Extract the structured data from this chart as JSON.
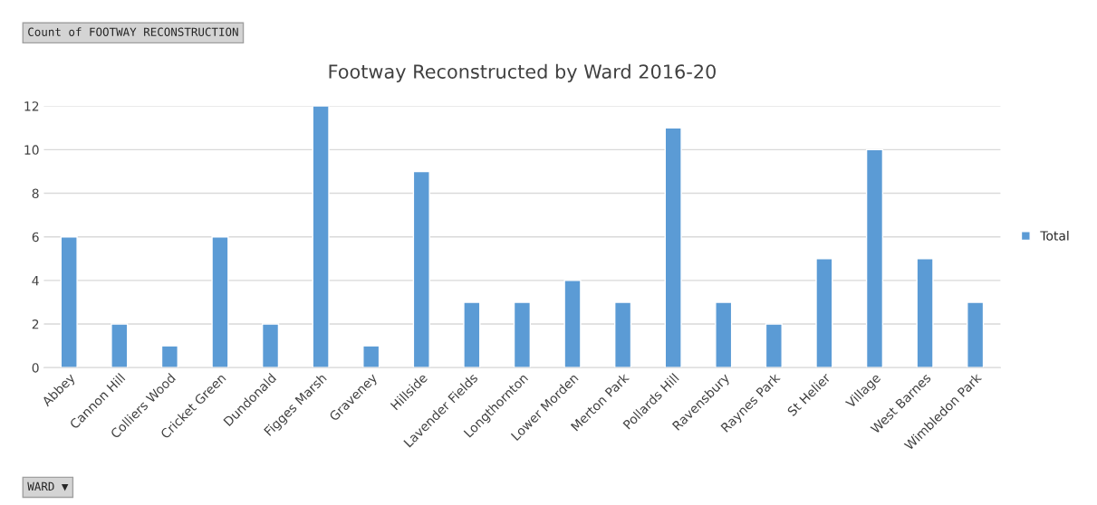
{
  "chart_data": {
    "type": "bar",
    "title": "Footway Reconstructed by Ward 2016-20",
    "categories": [
      "Abbey",
      "Cannon Hill",
      "Colliers Wood",
      "Cricket Green",
      "Dundonald",
      "Figges Marsh",
      "Graveney",
      "Hillside",
      "Lavender Fields",
      "Longthornton",
      "Lower Morden",
      "Merton Park",
      "Pollards Hill",
      "Ravensbury",
      "Raynes Park",
      "St Helier",
      "Village",
      "West Barnes",
      "Wimbledon Park"
    ],
    "series": [
      {
        "name": "Total",
        "color": "#5b9bd5",
        "values": [
          6,
          2,
          1,
          6,
          2,
          12,
          1,
          9,
          3,
          3,
          4,
          3,
          11,
          3,
          2,
          5,
          10,
          5,
          3
        ]
      }
    ],
    "ylim": [
      0,
      12
    ],
    "yticks": [
      0,
      2,
      4,
      6,
      8,
      10,
      12
    ],
    "grid": "y",
    "legend": "right",
    "annotations": [
      "Count of FOOTWAY RECONSTRUCTION",
      "WARD ▼"
    ]
  }
}
